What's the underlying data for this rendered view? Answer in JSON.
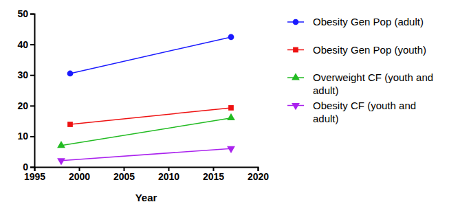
{
  "chart_data": {
    "type": "line",
    "x_label": "Year",
    "xlim": [
      1995,
      2020
    ],
    "xticks": [
      1995,
      2000,
      2005,
      2010,
      2015,
      2020
    ],
    "ylim": [
      0,
      50
    ],
    "yticks": [
      0,
      10,
      20,
      30,
      40,
      50
    ],
    "grid": false,
    "legend": "right",
    "series": [
      {
        "name": "Obesity Gen Pop (adult)",
        "color": "#1a1aff",
        "marker": "circle",
        "x": [
          1999,
          2017
        ],
        "values": [
          30.5,
          42.4
        ]
      },
      {
        "name": "Obesity Gen Pop (youth)",
        "color": "#ee1111",
        "marker": "square",
        "x": [
          1999,
          2017
        ],
        "values": [
          13.9,
          19.3
        ]
      },
      {
        "name": "Overweight CF (youth and adult)",
        "color": "#22bb22",
        "marker": "triangle",
        "x": [
          1998,
          2017
        ],
        "values": [
          7,
          16
        ]
      },
      {
        "name": "Obesity CF (youth and adult)",
        "color": "#aa22ee",
        "marker": "triangle-down",
        "x": [
          1998,
          2017
        ],
        "values": [
          2.1,
          6
        ]
      }
    ]
  }
}
